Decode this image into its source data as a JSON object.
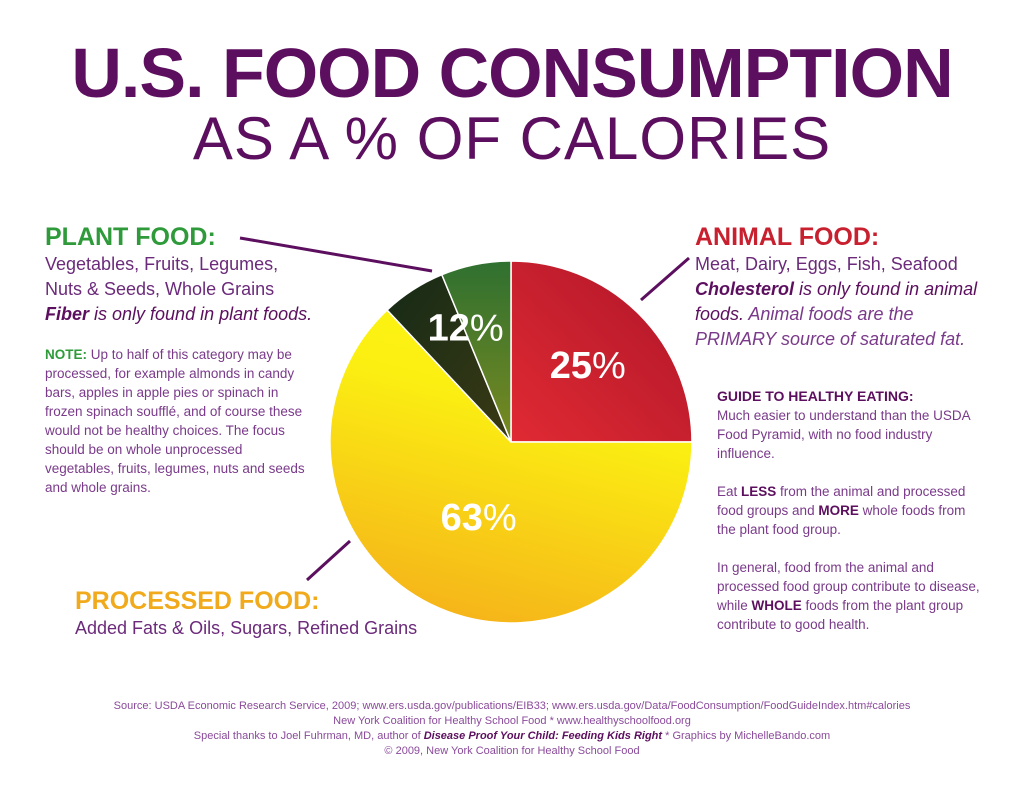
{
  "title": {
    "line1": "U.S. FOOD CONSUMPTION",
    "line2": "AS A % OF CALORIES"
  },
  "colors": {
    "title": "#5c0f5e",
    "plant": "#2e9a3a",
    "animal": "#c8202e",
    "processed": "#f0aa1c",
    "text": "#6b2a7a"
  },
  "plant": {
    "heading": "PLANT FOOD:",
    "line1": "Vegetables, Fruits, Legumes,",
    "line2": "Nuts & Seeds, Whole Grains",
    "fiber_bold": "Fiber",
    "fiber_rest": " is only found in plant foods.",
    "note_label": "NOTE:",
    "note_text": " Up to half of this category may be processed, for example almonds in candy bars, apples in apple pies or spinach in frozen spinach soufflé, and of course these would not be healthy choices. The focus should be on whole unprocessed vegetables, fruits, legumes, nuts and seeds and whole grains."
  },
  "animal": {
    "heading": "ANIMAL FOOD:",
    "line1": "Meat, Dairy, Eggs, Fish, Seafood",
    "chol_bold": "Cholesterol",
    "chol_rest": " is only found in animal foods.",
    "chol_tail": " Animal foods are the PRIMARY source of saturated fat."
  },
  "processed": {
    "heading": "PROCESSED FOOD:",
    "line1": "Added Fats & Oils, Sugars, Refined Grains"
  },
  "guide": {
    "heading": "GUIDE TO HEALTHY EATING:",
    "p1": "Much easier to understand than the USDA Food Pyramid, with no food industry influence.",
    "p2a": "Eat ",
    "p2b": "LESS",
    "p2c": " from the animal and processed food groups and ",
    "p2d": "MORE",
    "p2e": " whole foods from the plant food group.",
    "p3a": "In general, food from the animal and processed food group contribute to disease, while ",
    "p3b": "WHOLE",
    "p3c": " foods from the plant group contribute to good health."
  },
  "footer": {
    "source": "Source: USDA Economic Research Service, 2009; www.ers.usda.gov/publications/EIB33; www.ers.usda.gov/Data/FoodConsumption/FoodGuideIndex.htm#calories",
    "line2": "New York Coalition for Healthy School Food * www.healthyschoolfood.org",
    "thanks_a": "Special thanks to Joel Fuhrman, MD, author of ",
    "thanks_book": "Disease Proof Your Child: Feeding Kids Right",
    "thanks_b": " * Graphics by MichelleBando.com",
    "copyright": "© 2009, New York Coalition for Healthy School Food"
  },
  "chart_data": {
    "type": "pie",
    "title": "U.S. FOOD CONSUMPTION AS A % OF CALORIES",
    "start": "top, clockwise",
    "slices": [
      {
        "name": "ANIMAL FOOD",
        "value": 25,
        "label": "25",
        "color_a": "#e02a33",
        "color_b": "#b0172b"
      },
      {
        "name": "PROCESSED FOOD",
        "value": 63,
        "label": "63",
        "color_a": "#f5b61a",
        "color_b": "#fbef12"
      },
      {
        "name": "PLANT FOOD",
        "value": 12,
        "label": "12",
        "color_a": "#1a2a18",
        "color_b": "#4c7a2a"
      }
    ],
    "percent_sign": "%"
  }
}
